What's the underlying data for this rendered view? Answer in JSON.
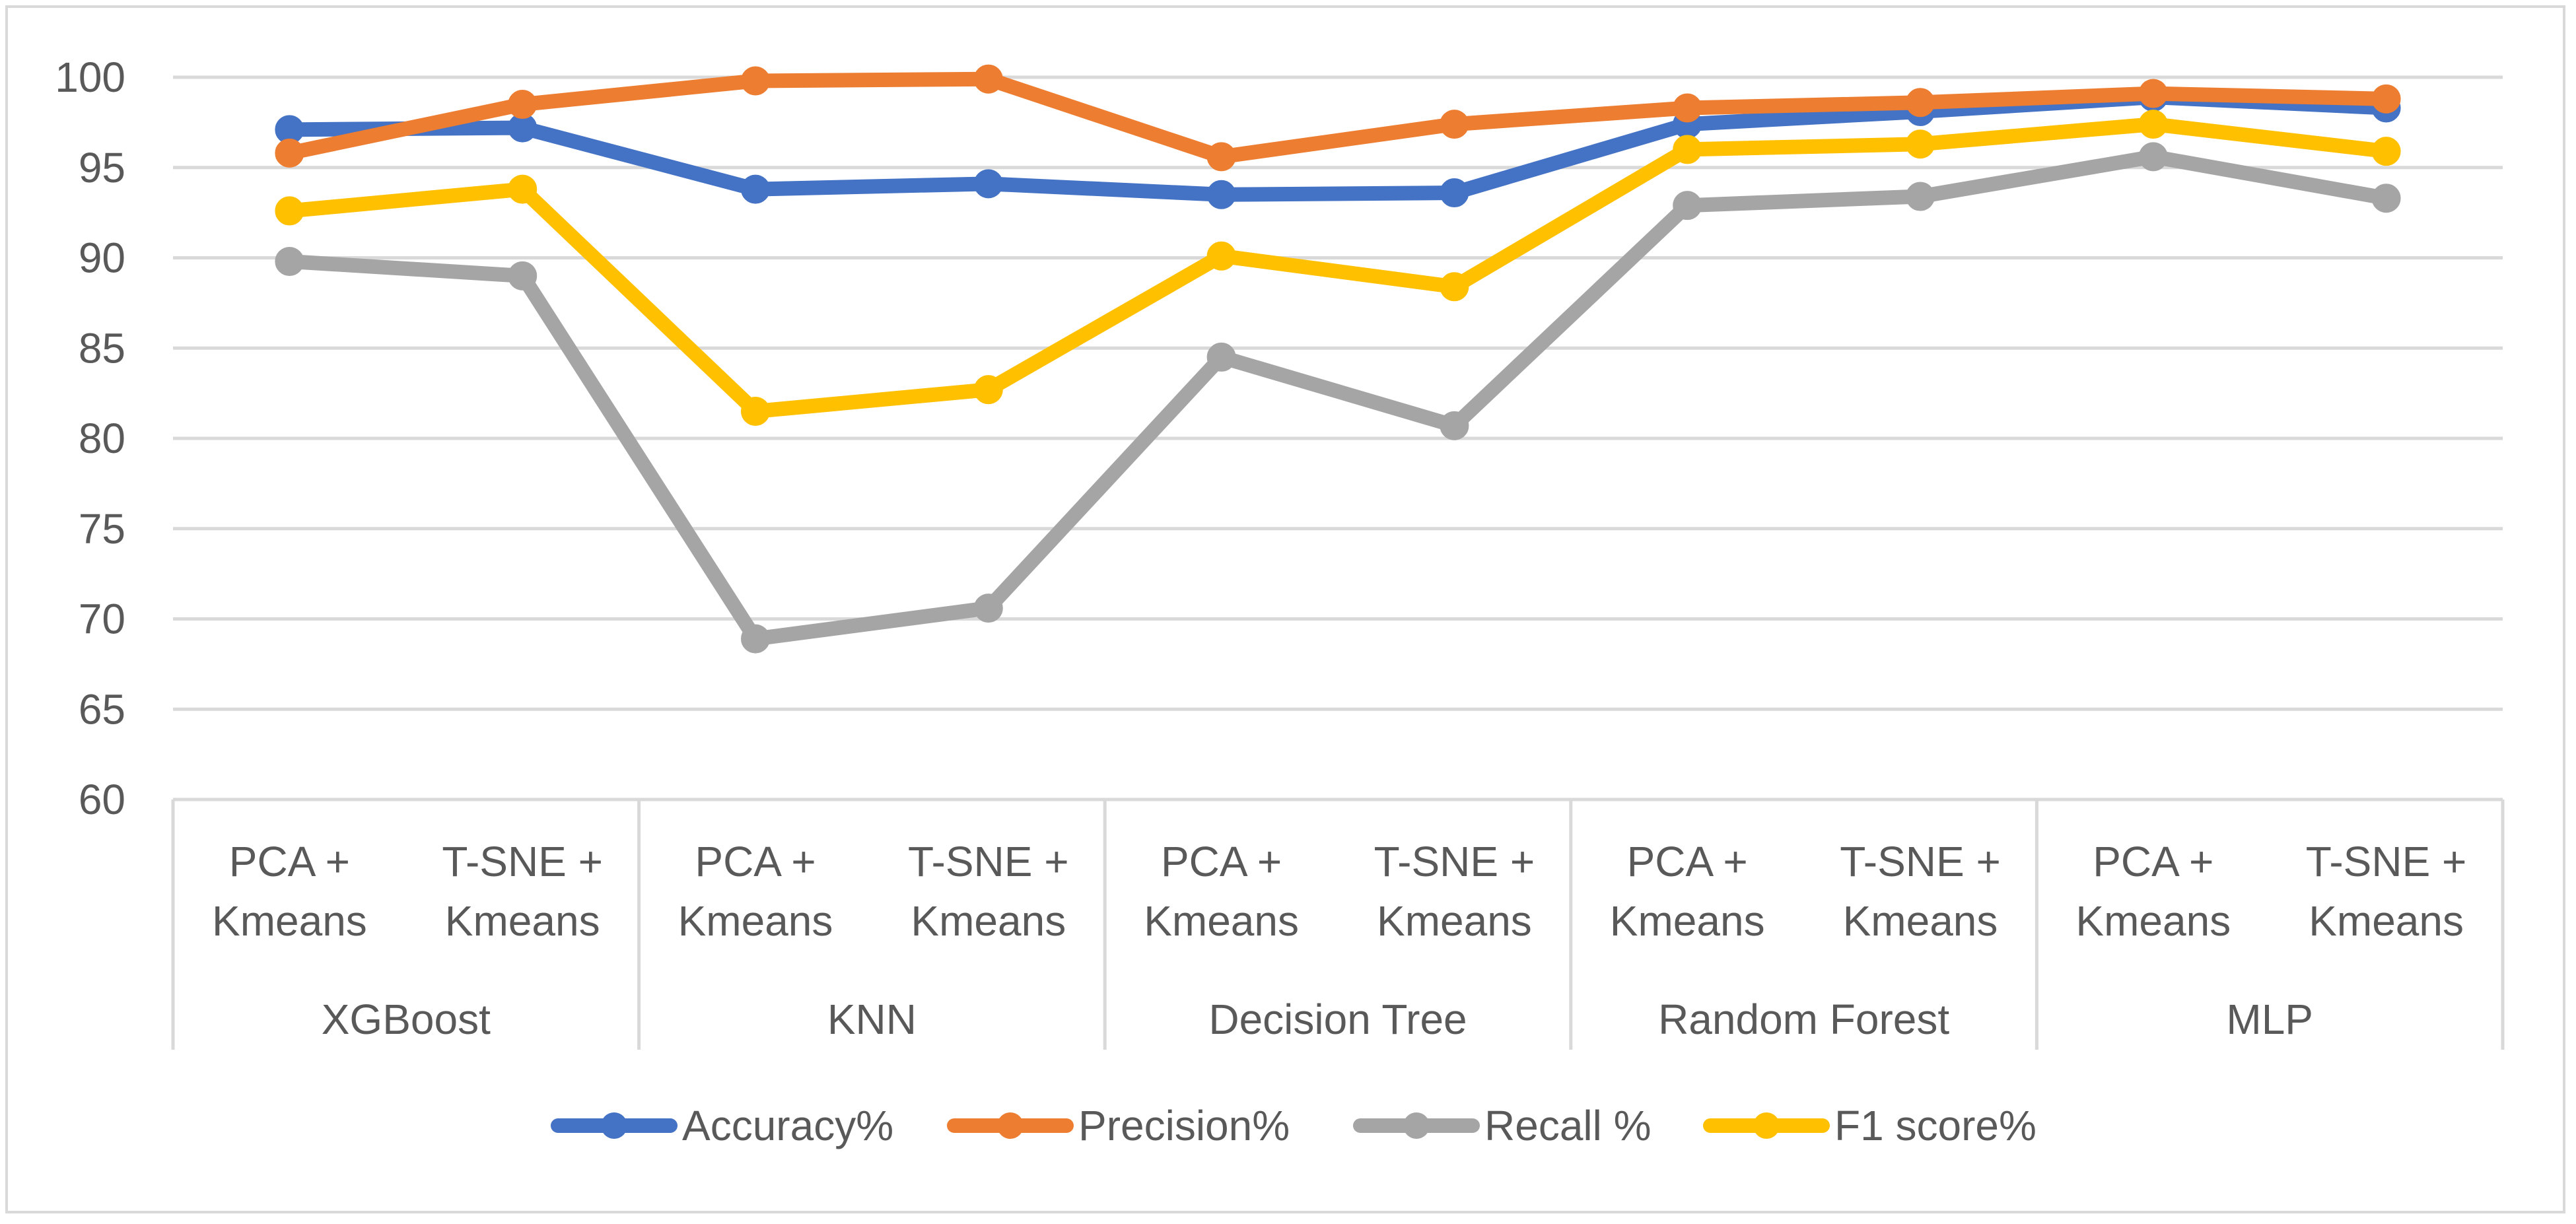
{
  "chart_data": {
    "type": "line",
    "title": "",
    "xlabel": "",
    "ylabel": "",
    "ylim": [
      60,
      100
    ],
    "yticks": [
      60,
      65,
      70,
      75,
      80,
      85,
      90,
      95,
      100
    ],
    "grid": true,
    "legend_position": "bottom",
    "groups": [
      {
        "name": "XGBoost",
        "categories": [
          "PCA + Kmeans",
          "T-SNE + Kmeans"
        ]
      },
      {
        "name": "KNN",
        "categories": [
          "PCA + Kmeans",
          "T-SNE + Kmeans"
        ]
      },
      {
        "name": "Decision Tree",
        "categories": [
          "PCA + Kmeans",
          "T-SNE + Kmeans"
        ]
      },
      {
        "name": "Random Forest",
        "categories": [
          "PCA + Kmeans",
          "T-SNE + Kmeans"
        ]
      },
      {
        "name": "MLP",
        "categories": [
          "PCA + Kmeans",
          "T-SNE + Kmeans"
        ]
      }
    ],
    "category_lines": [
      [
        "PCA +",
        "Kmeans"
      ],
      [
        "T-SNE +",
        "Kmeans"
      ]
    ],
    "series": [
      {
        "name": "Accuracy%",
        "color": "#4472c4",
        "values": [
          97.1,
          97.2,
          93.8,
          94.1,
          93.5,
          93.6,
          97.4,
          98.1,
          98.9,
          98.3
        ]
      },
      {
        "name": "Precision%",
        "color": "#ed7d31",
        "values": [
          95.8,
          98.5,
          99.8,
          99.9,
          95.6,
          97.4,
          98.3,
          98.6,
          99.1,
          98.8
        ]
      },
      {
        "name": "Recall %",
        "color": "#a5a5a5",
        "values": [
          89.8,
          89.0,
          68.9,
          70.6,
          84.5,
          80.7,
          92.9,
          93.4,
          95.6,
          93.3
        ]
      },
      {
        "name": "F1 score%",
        "color": "#ffc000",
        "values": [
          92.6,
          93.8,
          81.5,
          82.7,
          90.1,
          88.4,
          96.0,
          96.3,
          97.4,
          95.9
        ]
      }
    ]
  }
}
